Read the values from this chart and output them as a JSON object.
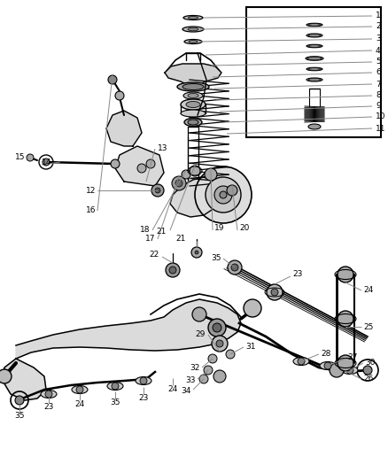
{
  "bg_color": "#f5f5f5",
  "fig_width": 4.38,
  "fig_height": 5.33,
  "dpi": 100,
  "label_fontsize": 6.5,
  "line_color": "#333333",
  "gray": "#888888",
  "light_gray": "#cccccc",
  "dark_gray": "#555555"
}
